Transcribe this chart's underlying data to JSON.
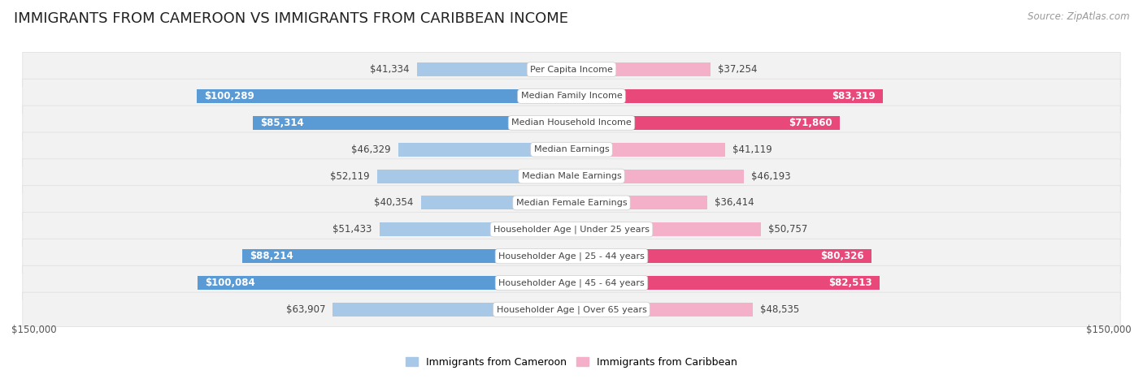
{
  "title": "IMMIGRANTS FROM CAMEROON VS IMMIGRANTS FROM CARIBBEAN INCOME",
  "source": "Source: ZipAtlas.com",
  "categories": [
    "Per Capita Income",
    "Median Family Income",
    "Median Household Income",
    "Median Earnings",
    "Median Male Earnings",
    "Median Female Earnings",
    "Householder Age | Under 25 years",
    "Householder Age | 25 - 44 years",
    "Householder Age | 45 - 64 years",
    "Householder Age | Over 65 years"
  ],
  "cameroon_values": [
    41334,
    100289,
    85314,
    46329,
    52119,
    40354,
    51433,
    88214,
    100084,
    63907
  ],
  "caribbean_values": [
    37254,
    83319,
    71860,
    41119,
    46193,
    36414,
    50757,
    80326,
    82513,
    48535
  ],
  "cameroon_labels": [
    "$41,334",
    "$100,289",
    "$85,314",
    "$46,329",
    "$52,119",
    "$40,354",
    "$51,433",
    "$88,214",
    "$100,084",
    "$63,907"
  ],
  "caribbean_labels": [
    "$37,254",
    "$83,319",
    "$71,860",
    "$41,119",
    "$46,193",
    "$36,414",
    "$50,757",
    "$80,326",
    "$82,513",
    "$48,535"
  ],
  "cameroon_color_light": "#a8c8e8",
  "cameroon_color_dark": "#5b9bd5",
  "caribbean_color_light": "#f4b0c8",
  "caribbean_color_dark": "#e8487a",
  "max_value": 150000,
  "row_bg_color": "#f2f2f2",
  "row_border_color": "#dddddd",
  "xlabel_left": "$150,000",
  "xlabel_right": "$150,000",
  "legend_cameroon": "Immigrants from Cameroon",
  "legend_caribbean": "Immigrants from Caribbean",
  "title_fontsize": 13,
  "label_fontsize": 8.5,
  "category_fontsize": 8.0,
  "source_fontsize": 8.5,
  "cam_dark_threshold": 80000,
  "car_dark_threshold": 70000
}
